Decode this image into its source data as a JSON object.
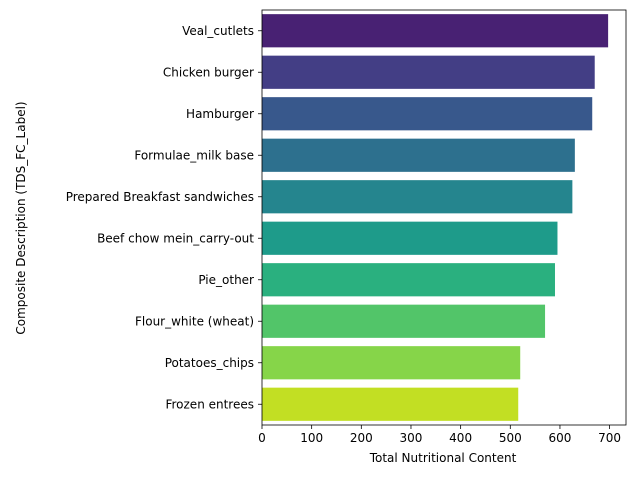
{
  "chart_data": {
    "type": "bar",
    "orientation": "horizontal",
    "categories": [
      "Veal_cutlets",
      "Chicken burger",
      "Hamburger",
      "Formulae_milk base",
      "Prepared Breakfast sandwiches",
      "Beef chow mein_carry-out",
      "Pie_other",
      "Flour_white (wheat)",
      "Potatoes_chips",
      "Frozen entrees"
    ],
    "values": [
      697,
      670,
      665,
      630,
      625,
      595,
      590,
      570,
      520,
      516
    ],
    "colors": [
      "#482173",
      "#433e85",
      "#38588c",
      "#2d708e",
      "#25858e",
      "#1e9b8a",
      "#2ab07f",
      "#52c569",
      "#86d549",
      "#c2df23"
    ],
    "title": "",
    "xlabel": "Total Nutritional Content",
    "ylabel": "Composite Description (TDS_FC_Label)",
    "xlim": [
      0,
      733
    ],
    "xticks": [
      0,
      100,
      200,
      300,
      400,
      500,
      600,
      700
    ],
    "grid": false,
    "legend": "none"
  }
}
